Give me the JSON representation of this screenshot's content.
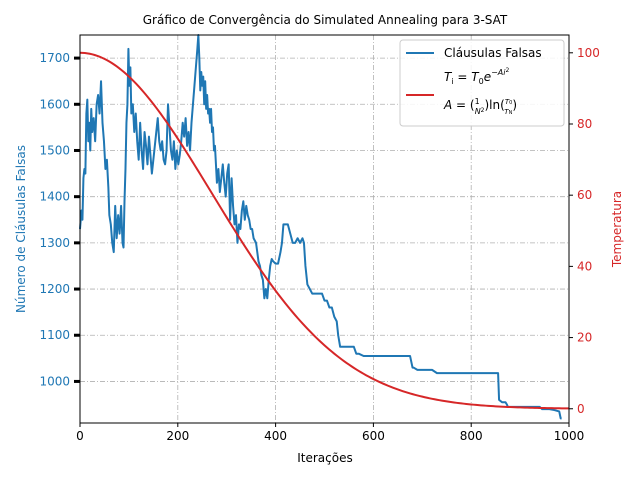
{
  "chart_data": {
    "type": "line",
    "title": "Gráfico de Convergência do Simulated Annealing para 3-SAT",
    "xlabel": "Iterações",
    "ylabel_left": "Número de Cláusulas Falsas",
    "ylabel_right": "Temperatura",
    "xlim": [
      0,
      1000
    ],
    "ylim_left": [
      910,
      1750
    ],
    "ylim_right": [
      -4,
      105
    ],
    "x_ticks": [
      0,
      200,
      400,
      600,
      800,
      1000
    ],
    "y_left_ticks": [
      1000,
      1100,
      1200,
      1300,
      1400,
      1500,
      1600,
      1700
    ],
    "y_right_ticks": [
      0,
      20,
      40,
      60,
      80,
      100
    ],
    "grid": true,
    "legend_position": "top-right",
    "colors": {
      "clausulas": "#1f77b4",
      "temperatura": "#d62728",
      "grid": "#b0b0b0"
    },
    "legend": {
      "series1": "Cláusulas Falsas",
      "formula1": "T_i = T_0 e^{-Ai^2}",
      "formula2": "A = (1/N^2) ln(T_0/T_N)"
    },
    "series": [
      {
        "name": "Cláusulas Falsas",
        "axis": "left",
        "points": [
          [
            0,
            1330
          ],
          [
            3,
            1370
          ],
          [
            5,
            1350
          ],
          [
            7,
            1440
          ],
          [
            9,
            1460
          ],
          [
            11,
            1450
          ],
          [
            13,
            1580
          ],
          [
            15,
            1610
          ],
          [
            17,
            1520
          ],
          [
            19,
            1560
          ],
          [
            21,
            1500
          ],
          [
            23,
            1590
          ],
          [
            25,
            1540
          ],
          [
            28,
            1570
          ],
          [
            31,
            1520
          ],
          [
            34,
            1600
          ],
          [
            37,
            1620
          ],
          [
            40,
            1580
          ],
          [
            43,
            1650
          ],
          [
            46,
            1560
          ],
          [
            49,
            1520
          ],
          [
            52,
            1460
          ],
          [
            55,
            1480
          ],
          [
            58,
            1420
          ],
          [
            60,
            1360
          ],
          [
            63,
            1340
          ],
          [
            66,
            1300
          ],
          [
            69,
            1280
          ],
          [
            72,
            1380
          ],
          [
            75,
            1310
          ],
          [
            78,
            1360
          ],
          [
            81,
            1320
          ],
          [
            84,
            1380
          ],
          [
            87,
            1300
          ],
          [
            89,
            1290
          ],
          [
            91,
            1390
          ],
          [
            93,
            1460
          ],
          [
            95,
            1560
          ],
          [
            97,
            1600
          ],
          [
            99,
            1720
          ],
          [
            101,
            1640
          ],
          [
            103,
            1680
          ],
          [
            105,
            1580
          ],
          [
            108,
            1600
          ],
          [
            111,
            1540
          ],
          [
            114,
            1580
          ],
          [
            117,
            1520
          ],
          [
            120,
            1480
          ],
          [
            123,
            1560
          ],
          [
            126,
            1500
          ],
          [
            129,
            1460
          ],
          [
            132,
            1540
          ],
          [
            135,
            1510
          ],
          [
            138,
            1470
          ],
          [
            141,
            1530
          ],
          [
            144,
            1490
          ],
          [
            147,
            1450
          ],
          [
            150,
            1480
          ],
          [
            153,
            1510
          ],
          [
            156,
            1540
          ],
          [
            159,
            1570
          ],
          [
            162,
            1520
          ],
          [
            165,
            1500
          ],
          [
            168,
            1520
          ],
          [
            171,
            1480
          ],
          [
            174,
            1470
          ],
          [
            177,
            1500
          ],
          [
            180,
            1600
          ],
          [
            183,
            1550
          ],
          [
            186,
            1500
          ],
          [
            189,
            1480
          ],
          [
            192,
            1520
          ],
          [
            195,
            1460
          ],
          [
            198,
            1500
          ],
          [
            201,
            1470
          ],
          [
            204,
            1490
          ],
          [
            207,
            1520
          ],
          [
            210,
            1560
          ],
          [
            213,
            1530
          ],
          [
            216,
            1570
          ],
          [
            219,
            1510
          ],
          [
            222,
            1540
          ],
          [
            225,
            1500
          ],
          [
            228,
            1560
          ],
          [
            231,
            1600
          ],
          [
            234,
            1640
          ],
          [
            237,
            1680
          ],
          [
            240,
            1720
          ],
          [
            242,
            1750
          ],
          [
            244,
            1700
          ],
          [
            246,
            1630
          ],
          [
            248,
            1670
          ],
          [
            250,
            1640
          ],
          [
            252,
            1660
          ],
          [
            254,
            1600
          ],
          [
            256,
            1650
          ],
          [
            258,
            1590
          ],
          [
            260,
            1620
          ],
          [
            262,
            1580
          ],
          [
            264,
            1590
          ],
          [
            266,
            1560
          ],
          [
            268,
            1590
          ],
          [
            270,
            1540
          ],
          [
            272,
            1550
          ],
          [
            274,
            1500
          ],
          [
            276,
            1510
          ],
          [
            278,
            1470
          ],
          [
            280,
            1430
          ],
          [
            283,
            1460
          ],
          [
            286,
            1410
          ],
          [
            289,
            1440
          ],
          [
            292,
            1470
          ],
          [
            295,
            1430
          ],
          [
            298,
            1400
          ],
          [
            301,
            1450
          ],
          [
            304,
            1470
          ],
          [
            307,
            1350
          ],
          [
            310,
            1440
          ],
          [
            313,
            1380
          ],
          [
            316,
            1340
          ],
          [
            319,
            1360
          ],
          [
            322,
            1300
          ],
          [
            325,
            1340
          ],
          [
            328,
            1330
          ],
          [
            331,
            1370
          ],
          [
            334,
            1390
          ],
          [
            337,
            1350
          ],
          [
            340,
            1380
          ],
          [
            343,
            1360
          ],
          [
            346,
            1350
          ],
          [
            349,
            1330
          ],
          [
            352,
            1330
          ],
          [
            355,
            1310
          ],
          [
            360,
            1300
          ],
          [
            365,
            1260
          ],
          [
            368,
            1250
          ],
          [
            371,
            1230
          ],
          [
            374,
            1220
          ],
          [
            377,
            1180
          ],
          [
            380,
            1200
          ],
          [
            383,
            1180
          ],
          [
            386,
            1220
          ],
          [
            389,
            1250
          ],
          [
            392,
            1265
          ],
          [
            395,
            1260
          ],
          [
            400,
            1255
          ],
          [
            405,
            1255
          ],
          [
            410,
            1280
          ],
          [
            413,
            1300
          ],
          [
            416,
            1340
          ],
          [
            420,
            1340
          ],
          [
            425,
            1340
          ],
          [
            430,
            1320
          ],
          [
            435,
            1300
          ],
          [
            440,
            1300
          ],
          [
            445,
            1310
          ],
          [
            450,
            1300
          ],
          [
            455,
            1310
          ],
          [
            458,
            1300
          ],
          [
            461,
            1250
          ],
          [
            465,
            1210
          ],
          [
            470,
            1200
          ],
          [
            475,
            1190
          ],
          [
            480,
            1190
          ],
          [
            485,
            1190
          ],
          [
            490,
            1190
          ],
          [
            495,
            1190
          ],
          [
            500,
            1175
          ],
          [
            505,
            1175
          ],
          [
            510,
            1160
          ],
          [
            515,
            1160
          ],
          [
            520,
            1140
          ],
          [
            525,
            1130
          ],
          [
            528,
            1100
          ],
          [
            532,
            1075
          ],
          [
            540,
            1075
          ],
          [
            550,
            1075
          ],
          [
            560,
            1075
          ],
          [
            565,
            1060
          ],
          [
            570,
            1060
          ],
          [
            580,
            1055
          ],
          [
            600,
            1055
          ],
          [
            620,
            1055
          ],
          [
            640,
            1055
          ],
          [
            660,
            1055
          ],
          [
            675,
            1055
          ],
          [
            680,
            1030
          ],
          [
            682,
            1030
          ],
          [
            690,
            1025
          ],
          [
            700,
            1025
          ],
          [
            710,
            1025
          ],
          [
            720,
            1025
          ],
          [
            730,
            1018
          ],
          [
            750,
            1018
          ],
          [
            800,
            1018
          ],
          [
            850,
            1018
          ],
          [
            855,
            1018
          ],
          [
            857,
            960
          ],
          [
            863,
            955
          ],
          [
            870,
            955
          ],
          [
            873,
            950
          ],
          [
            875,
            945
          ],
          [
            900,
            945
          ],
          [
            920,
            945
          ],
          [
            940,
            945
          ],
          [
            945,
            940
          ],
          [
            960,
            940
          ],
          [
            970,
            938
          ],
          [
            980,
            935
          ],
          [
            983,
            920
          ],
          [
            985,
            920
          ]
        ]
      },
      {
        "name": "Temperatura",
        "axis": "right",
        "equation": "T(i) = 100 * exp(-0.0000069 * i^2)",
        "T0": 100,
        "A": 6.9e-06,
        "x_range": [
          0,
          1000
        ],
        "samples": 201
      }
    ]
  }
}
